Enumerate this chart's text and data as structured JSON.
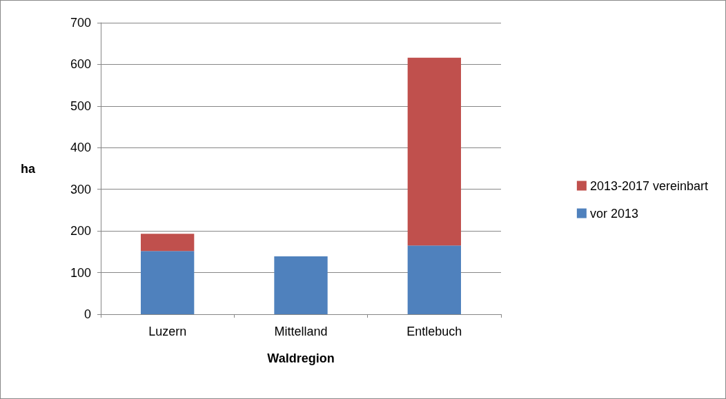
{
  "chart_data": {
    "type": "bar",
    "stacked": true,
    "xlabel": "Waldregion",
    "ylabel": "ha",
    "categories": [
      "Luzern",
      "Mittelland",
      "Entlebuch"
    ],
    "series": [
      {
        "name": "vor 2013",
        "color": "#4f81bd",
        "values": [
          152,
          139,
          165
        ]
      },
      {
        "name": "2013-2017 vereinbart",
        "color": "#c0504d",
        "values": [
          41,
          0,
          451
        ]
      }
    ],
    "ylim": [
      0,
      700
    ],
    "yticks": [
      0,
      100,
      200,
      300,
      400,
      500,
      600,
      700
    ],
    "grid": "y",
    "legend": "right"
  }
}
